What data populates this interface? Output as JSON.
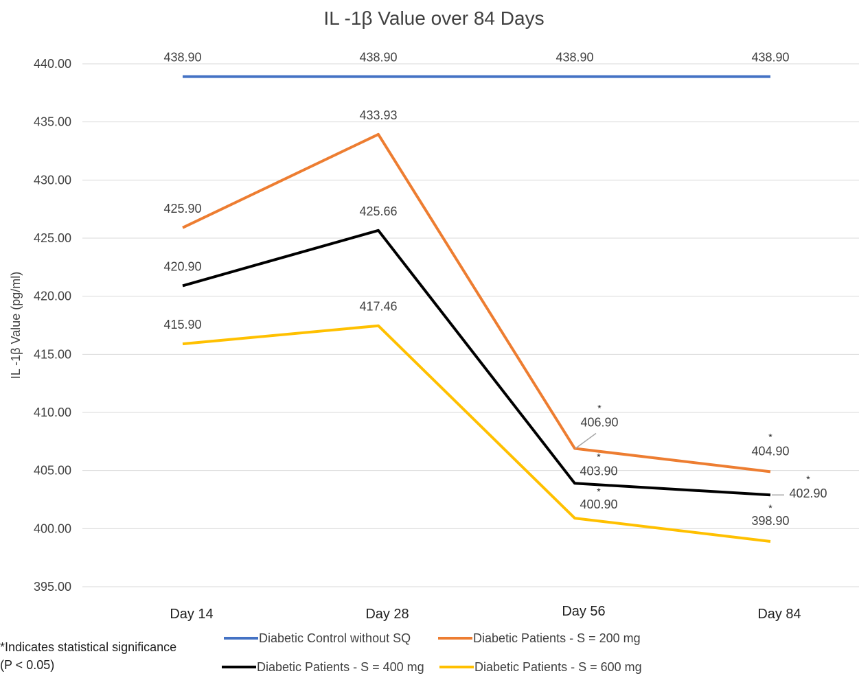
{
  "chart_data": {
    "type": "line",
    "title": "IL -1β Value over 84 Days",
    "ylabel": "IL -1β Value (pg/ml)",
    "xlabel": "",
    "categories": [
      "Day 14",
      "Day 28",
      "Day 56",
      "Day 84"
    ],
    "ylim": [
      395,
      440
    ],
    "yticks": [
      "395.00",
      "400.00",
      "405.00",
      "410.00",
      "415.00",
      "420.00",
      "425.00",
      "430.00",
      "435.00",
      "440.00"
    ],
    "grid": true,
    "legend_position": "bottom",
    "series": [
      {
        "name": "Diabetic Control without SQ",
        "color": "#4472C4",
        "values": [
          438.9,
          438.9,
          438.9,
          438.9
        ],
        "labels": [
          "438.90",
          "438.90",
          "438.90",
          "438.90"
        ],
        "significant": [
          false,
          false,
          false,
          false
        ]
      },
      {
        "name": "Diabetic Patients - S = 200 mg",
        "color": "#ED7D31",
        "values": [
          425.9,
          433.93,
          406.9,
          404.9
        ],
        "labels": [
          "425.90",
          "433.93",
          "406.90",
          "404.90"
        ],
        "significant": [
          false,
          false,
          true,
          true
        ]
      },
      {
        "name": "Diabetic Patients - S = 400 mg",
        "color": "#000000",
        "values": [
          420.9,
          425.66,
          403.9,
          402.9
        ],
        "labels": [
          "420.90",
          "425.66",
          "403.90",
          "402.90"
        ],
        "significant": [
          false,
          false,
          true,
          true
        ]
      },
      {
        "name": "Diabetic Patients - S = 600 mg",
        "color": "#FFC000",
        "values": [
          415.9,
          417.46,
          400.9,
          398.9
        ],
        "labels": [
          "415.90",
          "417.46",
          "400.90",
          "398.90"
        ],
        "significant": [
          false,
          false,
          true,
          true
        ]
      }
    ],
    "significance_marker": "*",
    "footnote": [
      "*Indicates statistical significance",
      "(P < 0.05)"
    ]
  }
}
